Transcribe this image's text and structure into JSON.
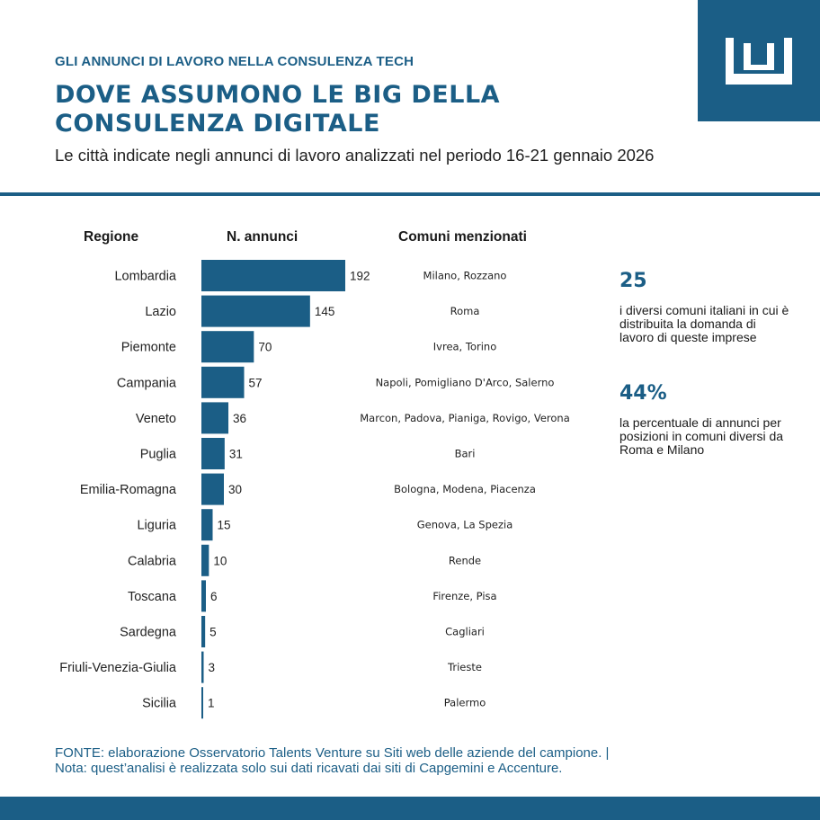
{
  "header": {
    "kicker": "GLI ANNUNCI DI LAVORO NELLA CONSULENZA TECH",
    "title": "DOVE ASSUMONO LE BIG DELLA CONSULENZA DIGITALE",
    "subtitle": "Le città indicate negli annunci di lavoro analizzati nel periodo 16-21 gennaio 2026"
  },
  "columns": {
    "region": "Regione",
    "count": "N. annunci",
    "towns": "Comuni menzionati"
  },
  "chart_data": {
    "type": "bar",
    "orientation": "horizontal",
    "title": "DOVE ASSUMONO LE BIG DELLA CONSULENZA DIGITALE",
    "xlabel": "N. annunci",
    "ylabel": "Regione",
    "xlim": [
      0,
      192
    ],
    "categories": [
      "Lombardia",
      "Lazio",
      "Piemonte",
      "Campania",
      "Veneto",
      "Puglia",
      "Emilia-Romagna",
      "Liguria",
      "Calabria",
      "Toscana",
      "Sardegna",
      "Friuli-Venezia-Giulia",
      "Sicilia"
    ],
    "values": [
      192,
      145,
      70,
      57,
      36,
      31,
      30,
      15,
      10,
      6,
      5,
      3,
      1
    ],
    "towns": [
      "Milano, Rozzano",
      "Roma",
      "Ivrea, Torino",
      "Napoli, Pomigliano D'Arco, Salerno",
      "Marcon, Padova, Pianiga, Rovigo, Verona",
      "Bari",
      "Bologna, Modena, Piacenza",
      "Genova, La Spezia",
      "Rende",
      "Firenze, Pisa",
      "Cagliari",
      "Trieste",
      "Palermo"
    ],
    "bar_color": "#1b5e86"
  },
  "stats": [
    {
      "value": "25",
      "text": "i diversi comuni italiani in cui è distribuita la domanda di lavoro di queste imprese"
    },
    {
      "value": "44%",
      "text": "la percentuale di annunci per posizioni in comuni diversi da Roma e Milano"
    }
  ],
  "source": "FONTE: elaborazione Osservatorio Talents Venture su Siti web delle aziende del campione. | Nota: quest’analisi è realizzata solo sui dati ricavati dai siti di Capgemini e Accenture.",
  "colors": {
    "brand": "#1b5e86"
  },
  "logo": {
    "icon": "crown-logo-icon"
  }
}
